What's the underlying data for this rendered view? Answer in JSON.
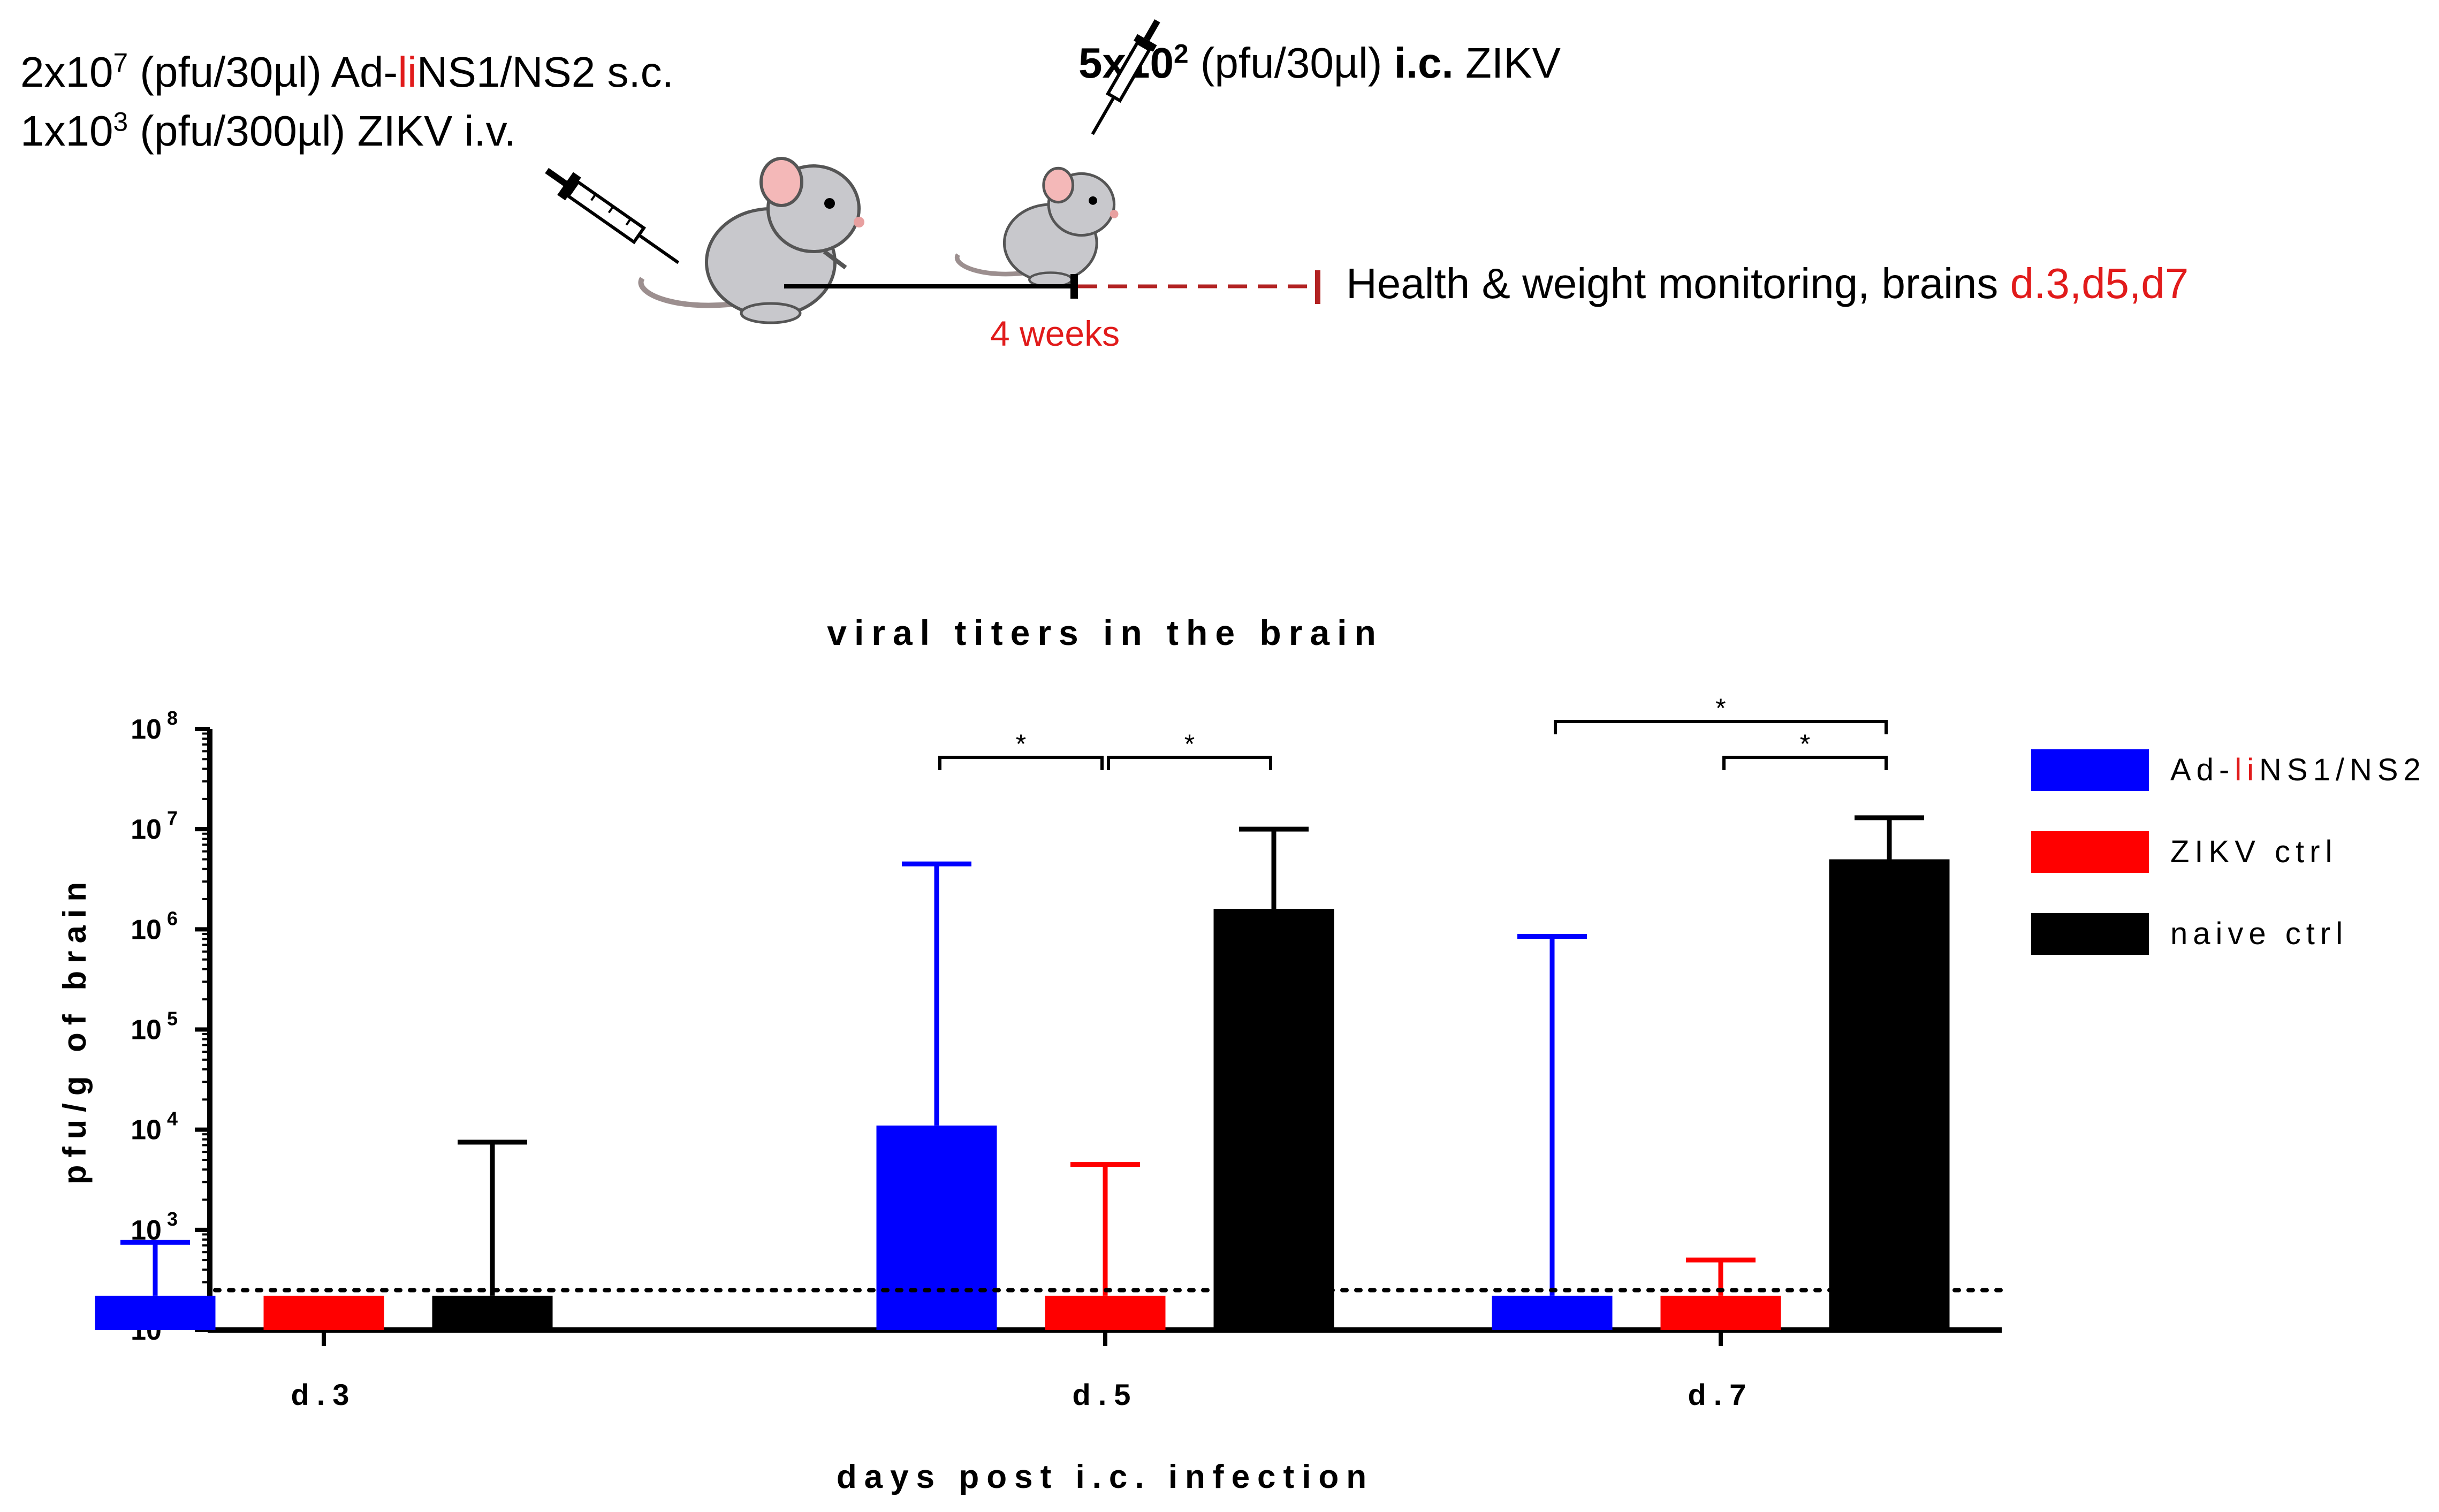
{
  "schematic": {
    "line1": {
      "prefix": "2x10",
      "exp": "7",
      "mid": " (pfu/30µl) Ad-",
      "red": "li",
      "suffix": "NS1/NS2 s.c."
    },
    "line2": {
      "prefix": "1x10",
      "exp": "3",
      "suffix": " (pfu/300µl) ZIKV i.v."
    },
    "challenge": {
      "dose": "5x10",
      "exp": "2",
      "unit": " (pfu/30µl) ",
      "route": "i.c.",
      "virus": " ZIKV"
    },
    "interval_label": "4 weeks",
    "monitoring": {
      "text": "Health & weight monitoring, brains ",
      "days": "d.3,d5,d7"
    },
    "colors": {
      "red": "#e11b1b",
      "dashed_line": "#b22222"
    }
  },
  "chart_data": {
    "type": "bar",
    "title": "viral titers in the brain",
    "xlabel": "days post i.c. infection",
    "ylabel": "pfu/g of brain",
    "yscale": "log",
    "ylim": [
      100,
      100000000
    ],
    "ytick_exponents": [
      2,
      3,
      4,
      5,
      6,
      7,
      8
    ],
    "ytick_base": "10",
    "categories": [
      "d.3",
      "d.5",
      "d.7"
    ],
    "detection_limit": 250,
    "series": [
      {
        "name": "Ad-liNS1/NS2",
        "legend_parts": [
          "Ad-",
          "li",
          "NS1/NS2"
        ],
        "color": "#0000ff",
        "values": [
          220,
          11000,
          220
        ],
        "error_upper": [
          750,
          4500000,
          850000
        ]
      },
      {
        "name": "ZIKV ctrl",
        "color": "#ff0000",
        "values": [
          220,
          220,
          220
        ],
        "error_upper": [
          220,
          4500,
          500
        ]
      },
      {
        "name": "naive ctrl",
        "color": "#000000",
        "values": [
          220,
          1600000,
          5000000
        ],
        "error_upper": [
          7500,
          10000000,
          13000000
        ]
      }
    ],
    "significance": [
      {
        "category": "d.5",
        "from_series": 0,
        "to_series": 1,
        "label": "*",
        "level": 0
      },
      {
        "category": "d.5",
        "from_series": 1,
        "to_series": 2,
        "label": "*",
        "level": 0
      },
      {
        "category": "d.7",
        "from_series": 0,
        "to_series": 2,
        "label": "*",
        "level": 1
      },
      {
        "category": "d.7",
        "from_series": 1,
        "to_series": 2,
        "label": "*",
        "level": 0
      }
    ]
  }
}
